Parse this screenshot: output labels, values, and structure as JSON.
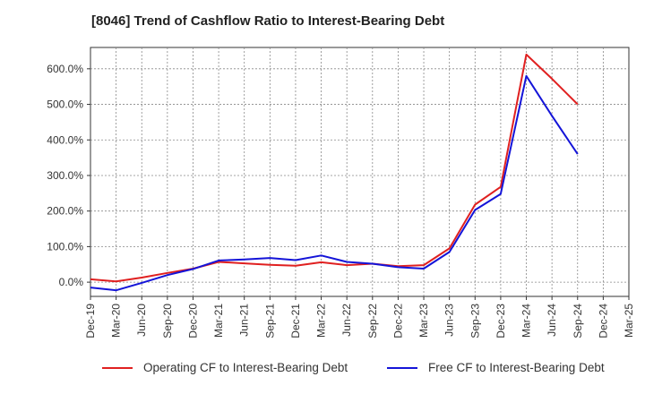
{
  "chart_data": {
    "type": "line",
    "title": "[8046]  Trend of Cashflow Ratio to Interest-Bearing Debt",
    "xlabel": "",
    "ylabel": "",
    "categories": [
      "Dec-19",
      "Mar-20",
      "Jun-20",
      "Sep-20",
      "Dec-20",
      "Mar-21",
      "Jun-21",
      "Sep-21",
      "Dec-21",
      "Mar-22",
      "Jun-22",
      "Sep-22",
      "Dec-22",
      "Mar-23",
      "Jun-23",
      "Sep-23",
      "Dec-23",
      "Mar-24",
      "Jun-24",
      "Sep-24",
      "Dec-24",
      "Mar-25"
    ],
    "y_ticks": [
      "0.0%",
      "100.0%",
      "200.0%",
      "300.0%",
      "400.0%",
      "500.0%",
      "600.0%"
    ],
    "ylim": [
      -40,
      660
    ],
    "grid": true,
    "legend_position": "bottom",
    "series": [
      {
        "name": "Operating CF to Interest-Bearing Debt",
        "color": "#e02020",
        "values": [
          8,
          2,
          13,
          26,
          38,
          57,
          53,
          49,
          46,
          56,
          48,
          52,
          45,
          48,
          95,
          218,
          268,
          640,
          572,
          500,
          null,
          null
        ]
      },
      {
        "name": "Free CF to Interest-Bearing Debt",
        "color": "#1414d8",
        "values": [
          -15,
          -23,
          -2,
          20,
          37,
          61,
          64,
          68,
          62,
          75,
          57,
          52,
          42,
          38,
          85,
          203,
          248,
          580,
          468,
          360,
          null,
          null
        ]
      }
    ]
  }
}
